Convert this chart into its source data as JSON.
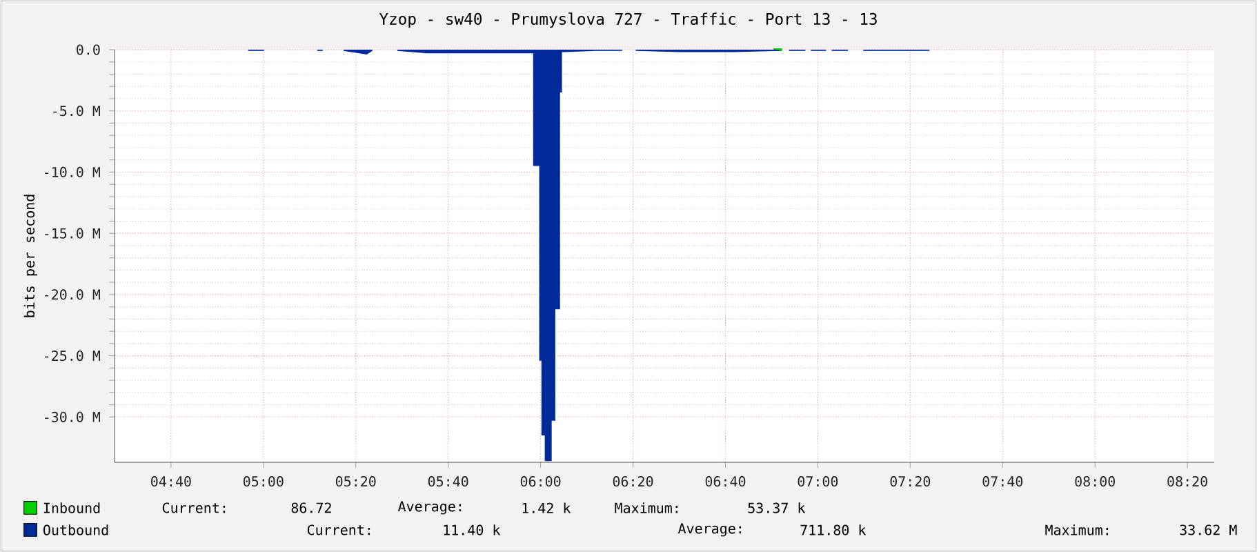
{
  "chart_data": {
    "type": "area",
    "title": "Yzop - sw40 - Prumyslova 727 - Traffic - Port 13 - 13",
    "ylabel": "bits per second",
    "xlim": [
      4.463,
      8.43
    ],
    "ylim": [
      -33.7,
      0
    ],
    "xticks": [
      {
        "value": 4.6667,
        "label": "04:40"
      },
      {
        "value": 5.0,
        "label": "05:00"
      },
      {
        "value": 5.3333,
        "label": "05:20"
      },
      {
        "value": 5.6667,
        "label": "05:40"
      },
      {
        "value": 6.0,
        "label": "06:00"
      },
      {
        "value": 6.3333,
        "label": "06:20"
      },
      {
        "value": 6.6667,
        "label": "06:40"
      },
      {
        "value": 7.0,
        "label": "07:00"
      },
      {
        "value": 7.3333,
        "label": "07:20"
      },
      {
        "value": 7.6667,
        "label": "07:40"
      },
      {
        "value": 8.0,
        "label": "08:00"
      },
      {
        "value": 8.3333,
        "label": "08:20"
      }
    ],
    "yticks": [
      {
        "value": 0,
        "label": "0.0"
      },
      {
        "value": -5,
        "label": "-5.0 M"
      },
      {
        "value": -10,
        "label": "-10.0 M"
      },
      {
        "value": -15,
        "label": "-15.0 M"
      },
      {
        "value": -20,
        "label": "-20.0 M"
      },
      {
        "value": -25,
        "label": "-25.0 M"
      },
      {
        "value": -30,
        "label": "-30.0 M"
      }
    ],
    "grid": true,
    "legend": "bottom",
    "series": [
      {
        "name": "Inbound",
        "type": "line",
        "color": "#00cf00",
        "x": [
          6.84,
          6.871
        ],
        "values": [
          0,
          0
        ]
      },
      {
        "name": "Outbound",
        "color": "#002a97",
        "x": [
          4.945,
          5.002,
          5.1,
          5.194,
          5.214,
          5.25,
          5.289,
          5.373,
          5.393,
          5.44,
          5.483,
          5.59,
          5.74,
          5.89,
          5.973,
          5.973,
          5.995,
          5.995,
          6.003,
          6.003,
          6.015,
          6.015,
          6.04,
          6.04,
          6.053,
          6.053,
          6.07,
          6.07,
          6.077,
          6.077,
          6.09,
          6.2,
          6.294,
          6.32,
          6.343,
          6.5,
          6.7,
          6.861,
          6.88,
          6.896,
          6.955,
          6.965,
          6.975,
          7.03,
          7.04,
          7.05,
          7.109,
          7.135,
          7.164,
          7.403
        ],
        "values": [
          -0.1,
          -0.1,
          null,
          -0.1,
          -0.1,
          null,
          -0.1,
          -0.4,
          -0.1,
          null,
          -0.1,
          -0.3,
          -0.3,
          -0.3,
          -0.3,
          -9.5,
          -9.5,
          -25.4,
          -25.4,
          -31.5,
          -31.5,
          -33.6,
          -33.6,
          -30.3,
          -30.3,
          -21.2,
          -21.2,
          -3.5,
          -3.5,
          -0.2,
          -0.2,
          -0.1,
          -0.1,
          null,
          -0.1,
          -0.2,
          -0.2,
          -0.1,
          null,
          -0.1,
          -0.1,
          null,
          -0.1,
          -0.1,
          null,
          -0.1,
          -0.1,
          null,
          -0.1,
          -0.1
        ]
      }
    ],
    "annotations": [
      "Current:",
      "86.72",
      "Average:",
      "1.42 k",
      "Maximum:",
      "53.37 k",
      "Current:",
      "11.40 k",
      "Average:",
      "711.80 k",
      "Maximum:",
      "33.62 M"
    ]
  }
}
